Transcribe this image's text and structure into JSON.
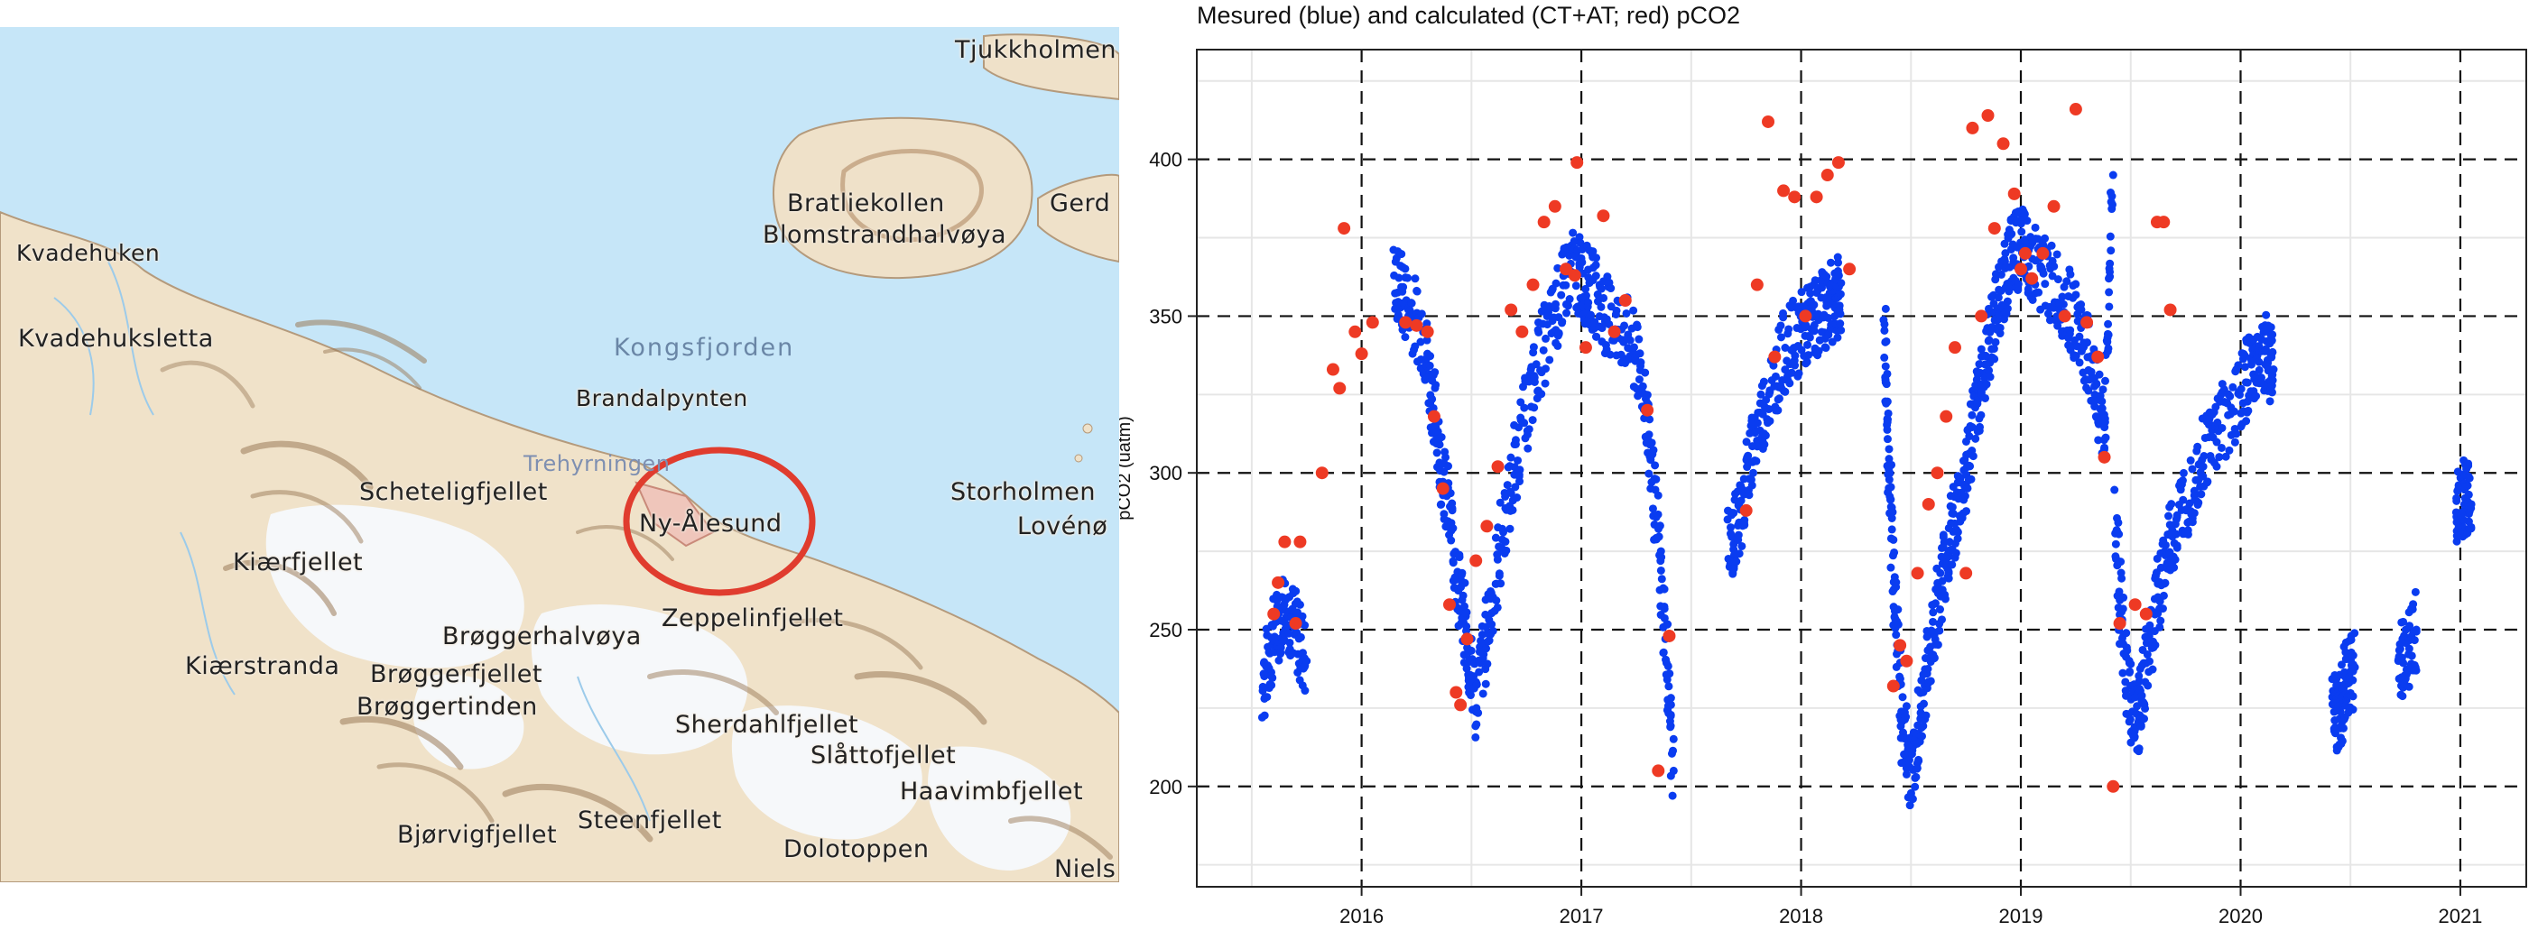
{
  "map": {
    "places": [
      {
        "id": "tjukkholmen",
        "label": "Tjukkholmen"
      },
      {
        "id": "bratliekollen",
        "label": "Bratliekollen"
      },
      {
        "id": "blomstrandhalvoya",
        "label": "Blomstrandhalvøya"
      },
      {
        "id": "gerd",
        "label": "Gerd"
      },
      {
        "id": "kvadehuken",
        "label": "Kvadehuken"
      },
      {
        "id": "kvadehuksletta",
        "label": "Kvadehuksletta"
      },
      {
        "id": "kongsfjorden",
        "label": "Kongsfjorden"
      },
      {
        "id": "brandalpynten",
        "label": "Brandalpynten"
      },
      {
        "id": "trehyrningen",
        "label": "Trehyrningen"
      },
      {
        "id": "scheteligfjellet",
        "label": "Scheteligfjellet"
      },
      {
        "id": "ny-alesund",
        "label": "Ny-Ålesund"
      },
      {
        "id": "storholmen",
        "label": "Storholmen"
      },
      {
        "id": "loveno",
        "label": "Lovénø"
      },
      {
        "id": "kiaerfjellet",
        "label": "Kiærfjellet"
      },
      {
        "id": "zeppelinfjellet",
        "label": "Zeppelinfjellet"
      },
      {
        "id": "broggerhalvoya",
        "label": "Brøggerhalvøya"
      },
      {
        "id": "kiaerstranda",
        "label": "Kiærstranda"
      },
      {
        "id": "broggerfjellet",
        "label": "Brøggerfjellet"
      },
      {
        "id": "broggertinden",
        "label": "Brøggertinden"
      },
      {
        "id": "sherdahlfjellet",
        "label": "Sherdahlfjellet"
      },
      {
        "id": "slattofjellet",
        "label": "Slåttofjellet"
      },
      {
        "id": "haavimbfjellet",
        "label": "Haavimbfjellet"
      },
      {
        "id": "bjorvigfjellet",
        "label": "Bjørvigfjellet"
      },
      {
        "id": "steenfjellet",
        "label": "Steenfjellet"
      },
      {
        "id": "dolotoppen",
        "label": "Dolotoppen"
      },
      {
        "id": "niels",
        "label": "Niels"
      }
    ],
    "highlight_color": "#e03c2e"
  },
  "chart_data": {
    "type": "scatter",
    "title": "Mesured (blue) and calculated (CT+AT; red) pCO2",
    "xlabel": "",
    "ylabel": "pCO2 (uatm)",
    "xlim": [
      2015.25,
      2021.3
    ],
    "ylim": [
      168,
      435
    ],
    "x_ticks": [
      2016,
      2017,
      2018,
      2019,
      2020,
      2021
    ],
    "y_ticks": [
      200,
      250,
      300,
      350,
      400
    ],
    "grid": "dashed major lines with light minor grid",
    "series": [
      {
        "color": "#0a3cf0",
        "marker": "small dots",
        "segments": [
          {
            "x": [
              2015.55,
              2015.6,
              2015.65,
              2015.7,
              2015.75
            ],
            "y": [
              232,
              248,
              258,
              250,
              240
            ]
          },
          {
            "x": [
              2016.15,
              2016.2,
              2016.28,
              2016.33,
              2016.38,
              2016.43,
              2016.48,
              2016.52,
              2016.58,
              2016.65,
              2016.72,
              2016.8,
              2016.88,
              2016.95,
              2017.0,
              2017.05,
              2017.12,
              2017.2,
              2017.28,
              2017.33,
              2017.38,
              2017.42
            ],
            "y": [
              362,
              355,
              345,
              320,
              295,
              270,
              245,
              228,
              252,
              285,
              310,
              335,
              350,
              365,
              362,
              358,
              350,
              345,
              330,
              295,
              250,
              205
            ]
          },
          {
            "x": [
              2017.67,
              2017.72,
              2017.78,
              2017.85,
              2017.92,
              2018.0,
              2018.05,
              2018.1,
              2018.15,
              2018.18
            ],
            "y": [
              275,
              285,
              308,
              325,
              338,
              345,
              348,
              352,
              355,
              357
            ]
          },
          {
            "x": [
              2018.38,
              2018.4,
              2018.43,
              2018.46,
              2018.5,
              2018.55,
              2018.6,
              2018.65,
              2018.7,
              2018.75,
              2018.8,
              2018.85,
              2018.9,
              2018.95,
              2019.0,
              2019.05,
              2019.12,
              2019.2,
              2019.27,
              2019.33,
              2019.38,
              2019.42
            ],
            "y": [
              345,
              300,
              255,
              220,
              205,
              225,
              250,
              270,
              285,
              300,
              322,
              340,
              355,
              368,
              372,
              368,
              362,
              355,
              345,
              330,
              315,
              395
            ]
          },
          {
            "x": [
              2019.43,
              2019.47,
              2019.52,
              2019.56,
              2019.62,
              2019.68,
              2019.75,
              2019.82,
              2019.9,
              2020.0,
              2020.06,
              2020.12,
              2020.15
            ],
            "y": [
              285,
              240,
              218,
              232,
              260,
              278,
              292,
              305,
              315,
              325,
              335,
              338,
              333
            ]
          },
          {
            "x": [
              2020.42,
              2020.45,
              2020.48,
              2020.52
            ],
            "y": [
              228,
              222,
              235,
              238
            ]
          },
          {
            "x": [
              2020.72,
              2020.76,
              2020.8
            ],
            "y": [
              238,
              244,
              250
            ]
          },
          {
            "x": [
              2020.98,
              2021.02,
              2021.05
            ],
            "y": [
              287,
              292,
              290
            ]
          }
        ]
      },
      {
        "color": "#ee3a24",
        "marker": "filled circles",
        "x": [
          2015.6,
          2015.62,
          2015.65,
          2015.7,
          2015.72,
          2015.82,
          2015.87,
          2015.9,
          2015.92,
          2015.97,
          2016.0,
          2016.05,
          2016.2,
          2016.25,
          2016.3,
          2016.33,
          2016.37,
          2016.4,
          2016.43,
          2016.45,
          2016.48,
          2016.52,
          2016.57,
          2016.62,
          2016.68,
          2016.73,
          2016.78,
          2016.83,
          2016.88,
          2016.93,
          2016.97,
          2016.98,
          2017.02,
          2017.1,
          2017.15,
          2017.2,
          2017.3,
          2017.35,
          2017.4,
          2017.75,
          2017.8,
          2017.85,
          2017.88,
          2017.92,
          2017.97,
          2018.02,
          2018.07,
          2018.12,
          2018.17,
          2018.22,
          2018.42,
          2018.45,
          2018.48,
          2018.53,
          2018.58,
          2018.62,
          2018.66,
          2018.7,
          2018.75,
          2018.78,
          2018.82,
          2018.85,
          2018.88,
          2018.92,
          2018.97,
          2019.0,
          2019.02,
          2019.05,
          2019.1,
          2019.15,
          2019.2,
          2019.25,
          2019.3,
          2019.35,
          2019.38,
          2019.42,
          2019.45,
          2019.52,
          2019.57,
          2019.62,
          2019.65,
          2019.68
        ],
        "y": [
          255,
          265,
          278,
          252,
          278,
          300,
          333,
          327,
          378,
          345,
          338,
          348,
          348,
          347,
          345,
          318,
          295,
          258,
          230,
          226,
          247,
          272,
          283,
          302,
          352,
          345,
          360,
          380,
          385,
          365,
          363,
          399,
          340,
          382,
          345,
          355,
          320,
          205,
          248,
          288,
          360,
          412,
          337,
          390,
          388,
          350,
          388,
          395,
          399,
          365,
          232,
          245,
          240,
          268,
          290,
          300,
          318,
          340,
          268,
          410,
          350,
          414,
          378,
          405,
          389,
          365,
          370,
          362,
          370,
          385,
          350,
          416,
          348,
          337,
          305,
          200,
          252,
          258,
          255,
          380,
          380,
          352
        ]
      }
    ]
  }
}
